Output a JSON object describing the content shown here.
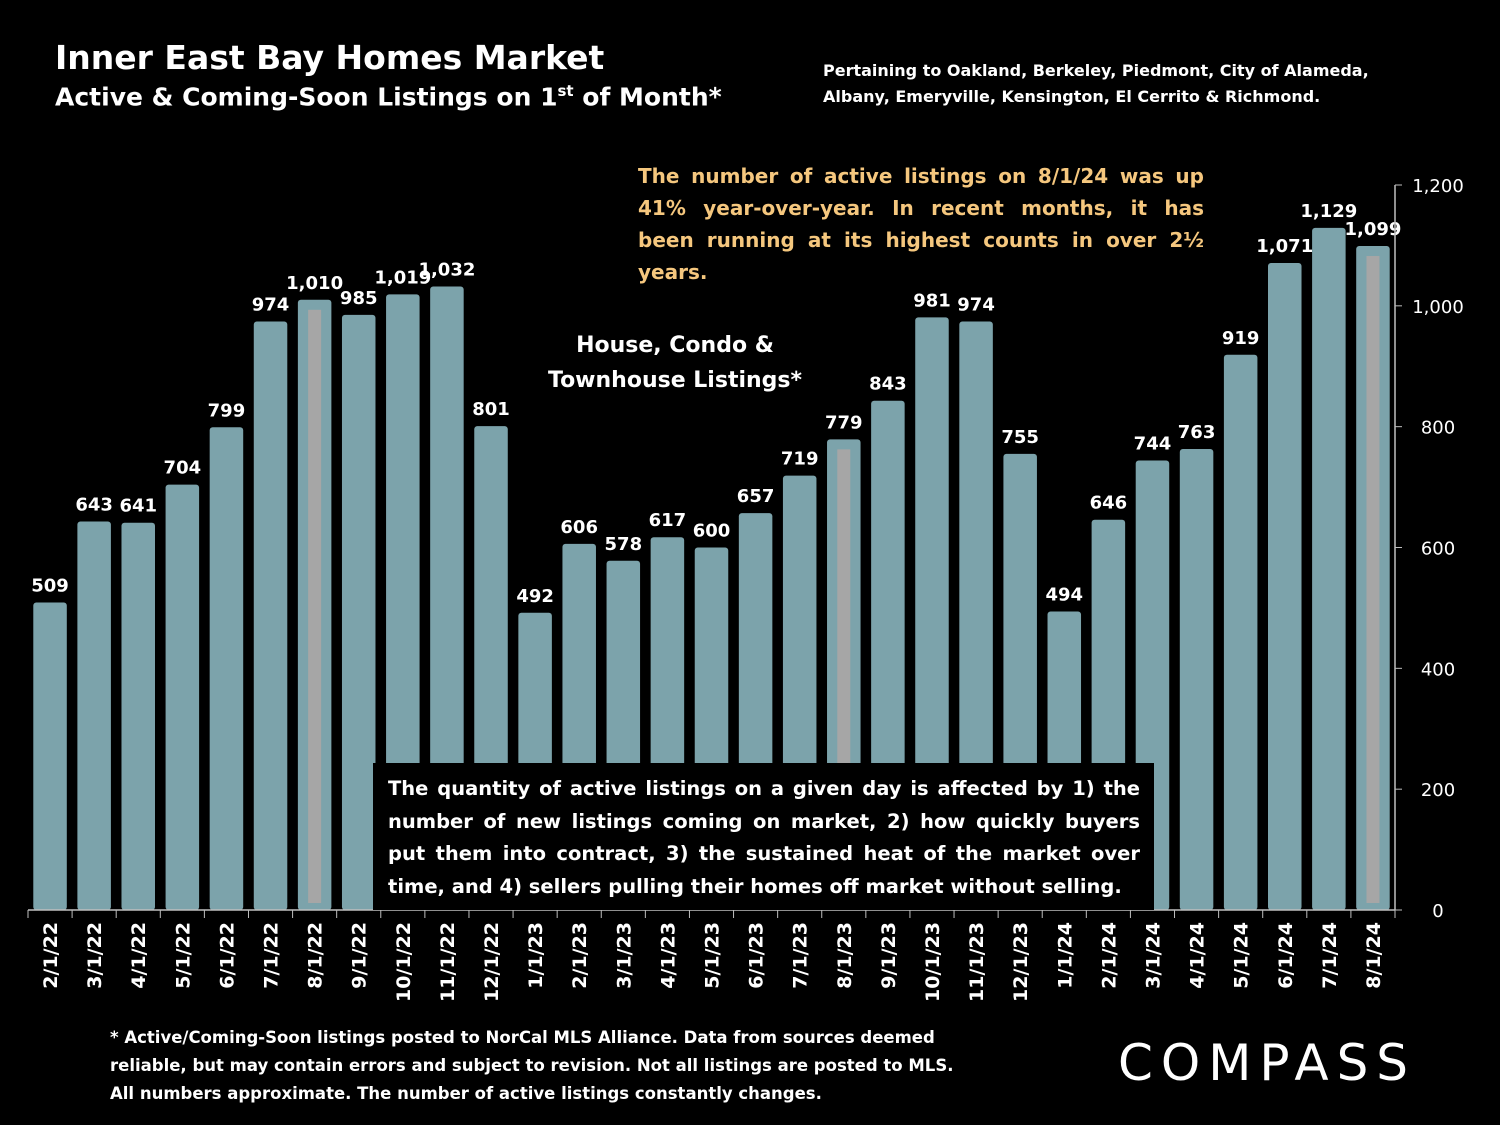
{
  "header": {
    "title": "Inner East Bay Homes Market",
    "subtitle_main": "Active & Coming-Soon Listings on 1",
    "subtitle_sup": "st",
    "subtitle_end": " of Month*",
    "pertaining_line1": "Pertaining to Oakland, Berkeley, Piedmont, City of Alameda,",
    "pertaining_line2": "Albany, Emeryville, Kensington, El Cerrito & Richmond."
  },
  "annotations": {
    "top_callout": "The number of active listings on 8/1/24 was up 41% year-over-year. In recent months, it has been running at its highest counts in over 2½ years.",
    "series_label_line1": "House, Condo &",
    "series_label_line2": "Townhouse Listings*",
    "note_box": "The quantity of active listings on a given day is affected by 1) the number of new listings coming on market, 2) how quickly buyers put them into contract, 3) the sustained heat of the market over time, and 4) sellers pulling their homes off market without selling."
  },
  "footnote": {
    "line1": "* Active/Coming-Soon listings posted to NorCal MLS Alliance.  Data from sources deemed",
    "line2": "reliable, but may contain errors and subject to revision.  Not all listings are posted to MLS.",
    "line3": "All numbers approximate. The number of active listings constantly changes."
  },
  "logo": {
    "text": "COMPASS"
  },
  "colors": {
    "background": "#000000",
    "bar": "#7ca3ab",
    "highlight_bar": "#a6a6a6",
    "callout_text": "#f5c77e",
    "text": "#ffffff"
  },
  "chart_data": {
    "type": "bar",
    "categories": [
      "2/1/22",
      "3/1/22",
      "4/1/22",
      "5/1/22",
      "6/1/22",
      "7/1/22",
      "8/1/22",
      "9/1/22",
      "10/1/22",
      "11/1/22",
      "12/1/22",
      "1/1/23",
      "2/1/23",
      "3/1/23",
      "4/1/23",
      "5/1/23",
      "6/1/23",
      "7/1/23",
      "8/1/23",
      "9/1/23",
      "10/1/23",
      "11/1/23",
      "12/1/23",
      "1/1/24",
      "2/1/24",
      "3/1/24",
      "4/1/24",
      "5/1/24",
      "6/1/24",
      "7/1/24",
      "8/1/24"
    ],
    "values": [
      509,
      643,
      641,
      704,
      799,
      974,
      1010,
      985,
      1019,
      1032,
      801,
      492,
      606,
      578,
      617,
      600,
      657,
      719,
      779,
      843,
      981,
      974,
      755,
      494,
      646,
      744,
      763,
      919,
      1071,
      1129,
      1099
    ],
    "value_labels": [
      "509",
      "643",
      "641",
      "704",
      "799",
      "974",
      "1,010",
      "985",
      "1,019",
      "1,032",
      "801",
      "492",
      "606",
      "578",
      "617",
      "600",
      "657",
      "719",
      "779",
      "843",
      "981",
      "974",
      "755",
      "494",
      "646",
      "744",
      "763",
      "919",
      "1,071",
      "1,129",
      "1,099"
    ],
    "highlighted": [
      "8/1/22",
      "8/1/23",
      "8/1/24"
    ],
    "y_ticks": [
      0,
      200,
      400,
      600,
      800,
      1000,
      1200
    ],
    "y_tick_labels": [
      "0",
      "200",
      "400",
      "600",
      "800",
      "1,000",
      "1,200"
    ],
    "ylim": [
      0,
      1200
    ],
    "y_axis_position": "right",
    "grid": false,
    "title": "",
    "xlabel": "",
    "ylabel": ""
  }
}
